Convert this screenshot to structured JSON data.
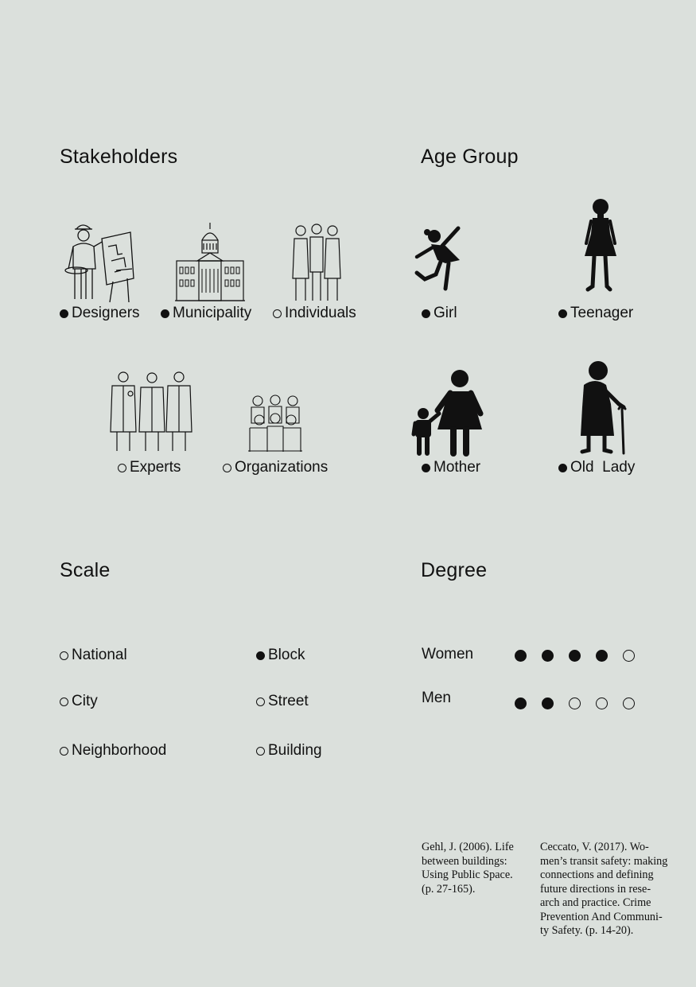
{
  "stakeholders": {
    "heading": "Stakeholders",
    "items": [
      {
        "label": "Designers",
        "filled": true,
        "icon": "designer-icon"
      },
      {
        "label": "Municipality",
        "filled": true,
        "icon": "municipality-icon"
      },
      {
        "label": "Individuals",
        "filled": false,
        "icon": "individuals-icon"
      },
      {
        "label": "Experts",
        "filled": false,
        "icon": "experts-icon"
      },
      {
        "label": "Organizations",
        "filled": false,
        "icon": "organizations-icon"
      }
    ]
  },
  "age_group": {
    "heading": "Age Group",
    "items": [
      {
        "label": "Girl",
        "filled": true,
        "icon": "girl-icon"
      },
      {
        "label": "Teenager",
        "filled": true,
        "icon": "teenager-icon"
      },
      {
        "label": "Mother",
        "filled": true,
        "icon": "mother-child-icon"
      },
      {
        "label": "Old  Lady",
        "filled": true,
        "icon": "old-lady-icon"
      }
    ]
  },
  "scale": {
    "heading": "Scale",
    "items": [
      {
        "label": "National",
        "filled": false
      },
      {
        "label": "City",
        "filled": false
      },
      {
        "label": "Neighborhood",
        "filled": false
      },
      {
        "label": "Block",
        "filled": true
      },
      {
        "label": "Street",
        "filled": false
      },
      {
        "label": "Building",
        "filled": false
      }
    ]
  },
  "degree": {
    "heading": "Degree",
    "rows": [
      {
        "label": "Women",
        "value": 4,
        "max": 5
      },
      {
        "label": "Men",
        "value": 2,
        "max": 5
      }
    ]
  },
  "references": [
    {
      "lines": [
        "Gehl, J. (2006). Life",
        "between buildings:",
        "Using Public Space.",
        "(p. 27-165)."
      ]
    },
    {
      "lines": [
        "Ceccato, V. (2017). Wo-",
        "men’s transit safety: making",
        "connections and defining",
        "future directions in rese-",
        "arch and practice. Crime",
        "Prevention And Communi-",
        "ty Safety. (p. 14-20)."
      ]
    }
  ]
}
